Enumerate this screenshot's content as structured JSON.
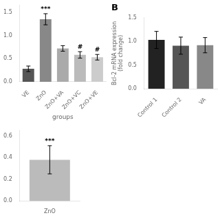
{
  "chart_data": [
    {
      "type": "bar",
      "categories": [
        "VE",
        "ZnO",
        "ZnO+VA",
        "ZnO+VC",
        "ZnO+VE"
      ],
      "values": [
        0.28,
        1.35,
        0.72,
        0.58,
        0.53
      ],
      "errors": [
        0.06,
        0.12,
        0.06,
        0.07,
        0.06
      ],
      "colors": [
        "#555555",
        "#888888",
        "#aaaaaa",
        "#bbbbbb",
        "#cccccc"
      ],
      "annotations": [
        null,
        "***",
        null,
        "#",
        "#"
      ],
      "xlabel": "groups",
      "ylim": [
        0,
        1.65
      ],
      "yticks": [
        {
          "value": 0,
          "label": "0.0"
        },
        0.5,
        {
          "value": 1,
          "label": "1.0"
        },
        1.5
      ],
      "grid": false
    },
    {
      "type": "bar",
      "title": "B",
      "categories": [
        "Control 1",
        "Control 2",
        "VA"
      ],
      "values": [
        1.03,
        0.91,
        0.92
      ],
      "errors": [
        0.18,
        0.18,
        0.16
      ],
      "colors": [
        "#222222",
        "#555555",
        "#888888"
      ],
      "ylabel": "Bcl-2 mRNA expression\n(fold change)",
      "ylim": [
        0,
        1.5
      ],
      "yticks": [
        {
          "value": 0,
          "label": "0.0"
        },
        0.5,
        {
          "value": 1,
          "label": "1.0"
        },
        1.5
      ],
      "grid": false
    },
    {
      "type": "bar",
      "categories": [
        "ZnO"
      ],
      "values": [
        0.38
      ],
      "errors": [
        0.13
      ],
      "colors": [
        "#bbbbbb"
      ],
      "annotations": [
        "***"
      ],
      "ylim": [
        0,
        0.65
      ],
      "yticks": [
        {
          "value": 0,
          "label": "0.0"
        },
        {
          "value": 0.2,
          "label": "0.2"
        },
        {
          "value": 0.4,
          "label": "0.4"
        },
        {
          "value": 0.6,
          "label": "0.6"
        }
      ],
      "grid": false
    }
  ]
}
